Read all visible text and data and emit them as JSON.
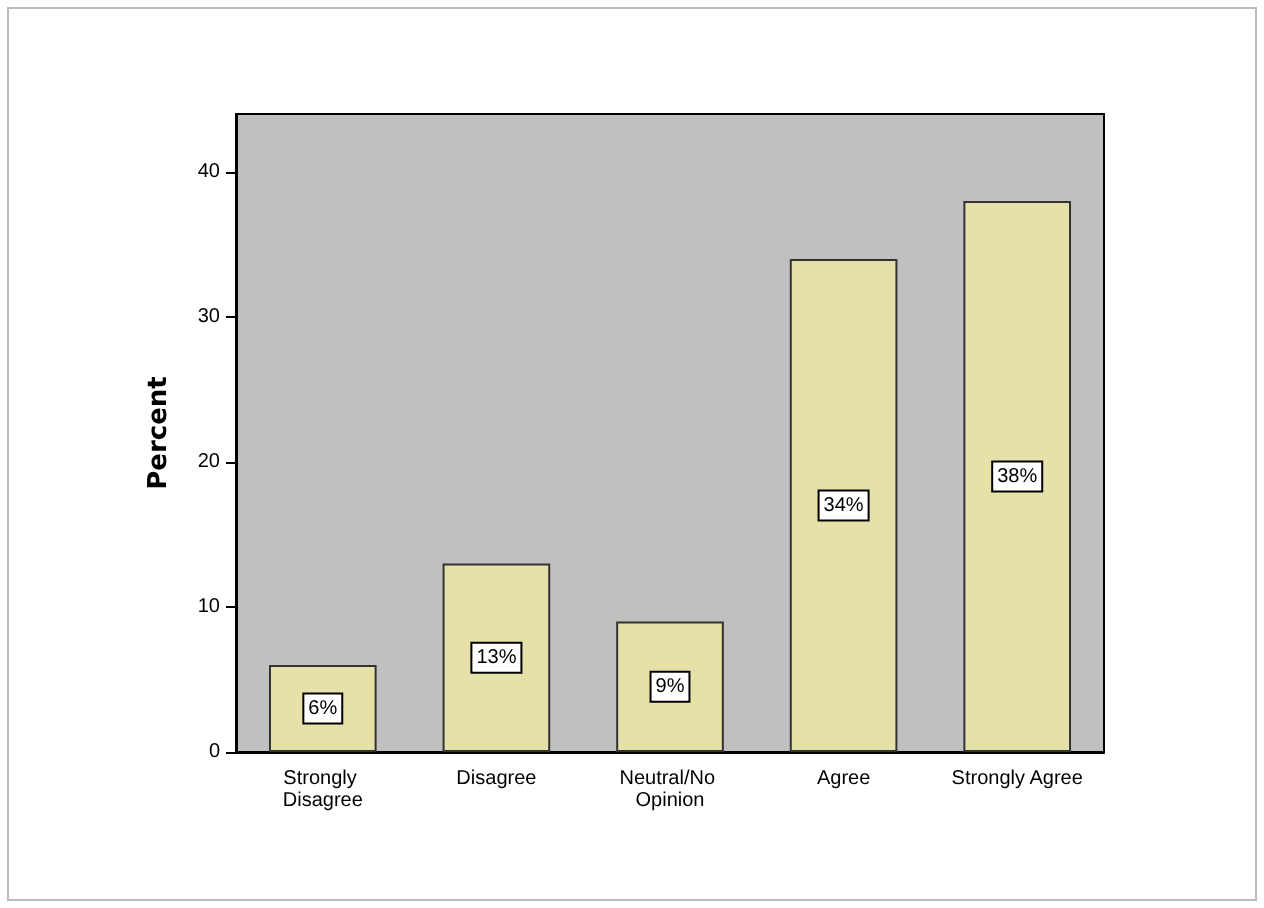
{
  "chart_data": {
    "type": "bar",
    "ylabel": "Percent",
    "categories": [
      "Strongly Disagree",
      "Disagree",
      "Neutral/No Opinion",
      "Agree",
      "Strongly Agree"
    ],
    "values": [
      6,
      13,
      9,
      34,
      38
    ],
    "color": "#e6e1a8",
    "value_labels": [
      "6%",
      "13%",
      "9%",
      "34%",
      "38%"
    ],
    "ylim": [
      0,
      44
    ],
    "yticks": [
      0,
      10,
      20,
      30,
      40
    ],
    "grid": false
  }
}
